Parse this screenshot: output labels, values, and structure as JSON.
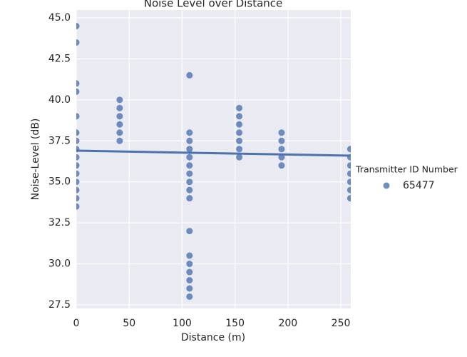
{
  "chart_data": {
    "type": "scatter",
    "title": "Noise Level over Distance",
    "x_label": "Distance (m)",
    "y_label": "Noise-Level (dB)",
    "legend_title": "Transmitter ID Number",
    "x": [
      0,
      0,
      0,
      0,
      0,
      0,
      0,
      0,
      0,
      0,
      0,
      0,
      0,
      0,
      0,
      41,
      41,
      41,
      41,
      41,
      41,
      107,
      107,
      107,
      107,
      107,
      107,
      107,
      107,
      107,
      107,
      107,
      107,
      107,
      107,
      107,
      107,
      107,
      154,
      154,
      154,
      154,
      154,
      154,
      154,
      194,
      194,
      194,
      194,
      194,
      259,
      259,
      259,
      259,
      259,
      259,
      259
    ],
    "series": [
      {
        "name": "65477",
        "color": "#4c72b0",
        "values": [
          44.5,
          43.5,
          41,
          40.5,
          39,
          38,
          37.5,
          37,
          36.5,
          36,
          35.5,
          35,
          34.5,
          34,
          33.5,
          40,
          39.5,
          39,
          38.5,
          38,
          37.5,
          41.5,
          38,
          37.5,
          37,
          36.5,
          36,
          35.5,
          35,
          34.5,
          34,
          32,
          30.5,
          30,
          29.5,
          29,
          28.5,
          28,
          39.5,
          39,
          38.5,
          38,
          37.5,
          37,
          36.5,
          38,
          37.5,
          37,
          36.5,
          36,
          37,
          36.5,
          36,
          35.5,
          35,
          34.5,
          34
        ]
      }
    ],
    "regression": {
      "x": [
        0,
        259
      ],
      "y": [
        36.9,
        36.6
      ]
    },
    "xlim": [
      0,
      259.4
    ],
    "ylim": [
      27.28,
      45.48
    ],
    "xticks": [
      0,
      50,
      100,
      150,
      200,
      250
    ],
    "yticks": [
      {
        "value": 27.5,
        "label": "27.5"
      },
      {
        "value": 30,
        "label": "30.0"
      },
      32.5,
      {
        "value": 35,
        "label": "35.0"
      },
      37.5,
      {
        "value": 40,
        "label": "40.0"
      },
      42.5,
      {
        "value": 45,
        "label": "45.0"
      }
    ],
    "grid": true
  }
}
